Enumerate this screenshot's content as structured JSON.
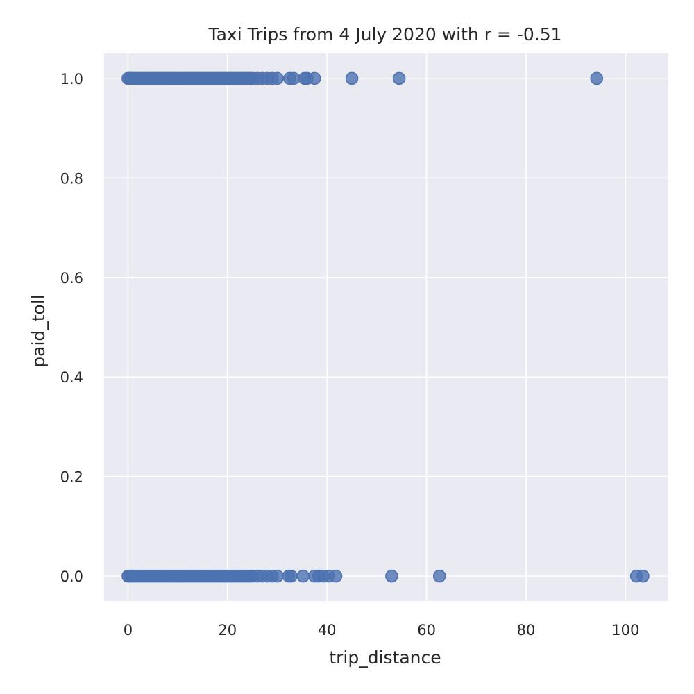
{
  "chart_data": {
    "type": "scatter",
    "title": "Taxi Trips from 4 July 2020 with r = -0.51",
    "xlabel": "trip_distance",
    "ylabel": "paid_toll",
    "xlim": [
      -4.8,
      108.6
    ],
    "ylim": [
      -0.05,
      1.05
    ],
    "xticks": [
      0,
      20,
      40,
      60,
      80,
      100
    ],
    "yticks": [
      0.0,
      0.2,
      0.4,
      0.6,
      0.8,
      1.0
    ],
    "xtick_labels": [
      "0",
      "20",
      "40",
      "60",
      "80",
      "100"
    ],
    "ytick_labels": [
      "0.0",
      "0.2",
      "0.4",
      "0.6",
      "0.8",
      "1.0"
    ],
    "grid": true,
    "colors": {
      "background": "#eaeaf2",
      "point_fill": "#4c72b0",
      "point_fill_opacity": 0.8,
      "grid": "#ffffff"
    },
    "series": [
      {
        "x": [
          0,
          0.3,
          0.6,
          1,
          1.5,
          2,
          2.5,
          3,
          3.5,
          4,
          4.5,
          5,
          5.5,
          6,
          6.5,
          7,
          7.5,
          8,
          8.5,
          9,
          9.5,
          10,
          10.5,
          11,
          11.5,
          12,
          12.5,
          13,
          13.5,
          14,
          14.5,
          15,
          15.5,
          16,
          16.5,
          17,
          17.5,
          18,
          18.5,
          19,
          19.5,
          20,
          20.5,
          21,
          21.5,
          22,
          22.5,
          23,
          23.5,
          24,
          24.5,
          25,
          26,
          27,
          28,
          29,
          30,
          32.5,
          33.3,
          35.5,
          36,
          37.5,
          45,
          54.5,
          94.2
        ],
        "y": [
          1,
          1,
          1,
          1,
          1,
          1,
          1,
          1,
          1,
          1,
          1,
          1,
          1,
          1,
          1,
          1,
          1,
          1,
          1,
          1,
          1,
          1,
          1,
          1,
          1,
          1,
          1,
          1,
          1,
          1,
          1,
          1,
          1,
          1,
          1,
          1,
          1,
          1,
          1,
          1,
          1,
          1,
          1,
          1,
          1,
          1,
          1,
          1,
          1,
          1,
          1,
          1,
          1,
          1,
          1,
          1,
          1,
          1,
          1,
          1,
          1,
          1,
          1,
          1,
          1
        ]
      },
      {
        "x": [
          0,
          0.3,
          0.6,
          1,
          1.5,
          2,
          2.5,
          3,
          3.5,
          4,
          4.5,
          5,
          5.5,
          6,
          6.5,
          7,
          7.5,
          8,
          8.5,
          9,
          9.5,
          10,
          10.5,
          11,
          11.5,
          12,
          12.5,
          13,
          13.5,
          14,
          14.5,
          15,
          15.5,
          16,
          16.5,
          17,
          17.5,
          18,
          18.5,
          19,
          19.5,
          20,
          20.5,
          21,
          21.5,
          22,
          22.5,
          23,
          23.5,
          24,
          24.5,
          25,
          26,
          27,
          28,
          29,
          30,
          32.3,
          32.8,
          35.2,
          37.5,
          38.3,
          39.3,
          40.3,
          41.8,
          53,
          62.6,
          102.2,
          103.5
        ],
        "y": [
          0,
          0,
          0,
          0,
          0,
          0,
          0,
          0,
          0,
          0,
          0,
          0,
          0,
          0,
          0,
          0,
          0,
          0,
          0,
          0,
          0,
          0,
          0,
          0,
          0,
          0,
          0,
          0,
          0,
          0,
          0,
          0,
          0,
          0,
          0,
          0,
          0,
          0,
          0,
          0,
          0,
          0,
          0,
          0,
          0,
          0,
          0,
          0,
          0,
          0,
          0,
          0,
          0,
          0,
          0,
          0,
          0,
          0,
          0,
          0,
          0,
          0,
          0,
          0,
          0,
          0,
          0,
          0,
          0
        ]
      }
    ]
  }
}
